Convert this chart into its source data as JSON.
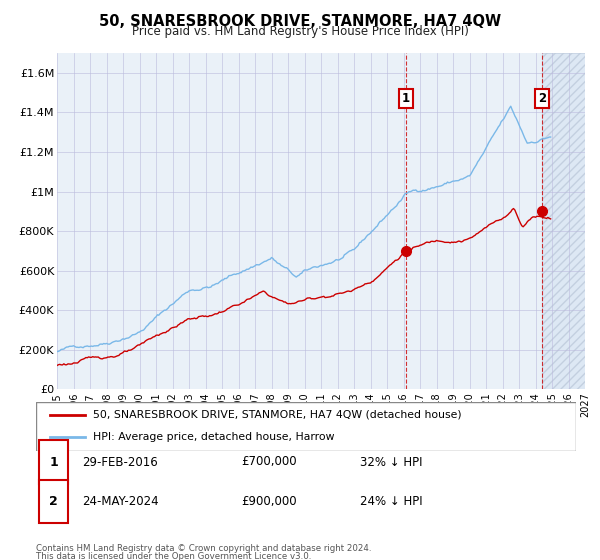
{
  "title": "50, SNARESBROOK DRIVE, STANMORE, HA7 4QW",
  "subtitle": "Price paid vs. HM Land Registry's House Price Index (HPI)",
  "legend_line1": "50, SNARESBROOK DRIVE, STANMORE, HA7 4QW (detached house)",
  "legend_line2": "HPI: Average price, detached house, Harrow",
  "annotation1_date": "29-FEB-2016",
  "annotation1_price": "£700,000",
  "annotation1_hpi": "32% ↓ HPI",
  "annotation2_date": "24-MAY-2024",
  "annotation2_price": "£900,000",
  "annotation2_hpi": "24% ↓ HPI",
  "footnote1": "Contains HM Land Registry data © Crown copyright and database right 2024.",
  "footnote2": "This data is licensed under the Open Government Licence v3.0.",
  "hpi_color": "#7ab8e8",
  "price_color": "#cc0000",
  "background_plot": "#eaf1f8",
  "grid_color": "#bbbbdd",
  "ylim": [
    0,
    1700000
  ],
  "xlim_start": 1995.0,
  "xlim_end": 2027.0,
  "sale1_x": 2016.15,
  "sale1_y": 700000,
  "sale2_x": 2024.4,
  "sale2_y": 900000,
  "yticks": [
    0,
    200000,
    400000,
    600000,
    800000,
    1000000,
    1200000,
    1400000,
    1600000
  ],
  "ytick_labels": [
    "£0",
    "£200K",
    "£400K",
    "£600K",
    "£800K",
    "£1M",
    "£1.2M",
    "£1.4M",
    "£1.6M"
  ],
  "xticks": [
    1995,
    1996,
    1997,
    1998,
    1999,
    2000,
    2001,
    2002,
    2003,
    2004,
    2005,
    2006,
    2007,
    2008,
    2009,
    2010,
    2011,
    2012,
    2013,
    2014,
    2015,
    2016,
    2017,
    2018,
    2019,
    2020,
    2021,
    2022,
    2023,
    2024,
    2025,
    2026,
    2027
  ],
  "future_shade_start": 2024.4,
  "future_shade_end": 2027.0,
  "hpi_seed": 42,
  "price_seed": 123
}
